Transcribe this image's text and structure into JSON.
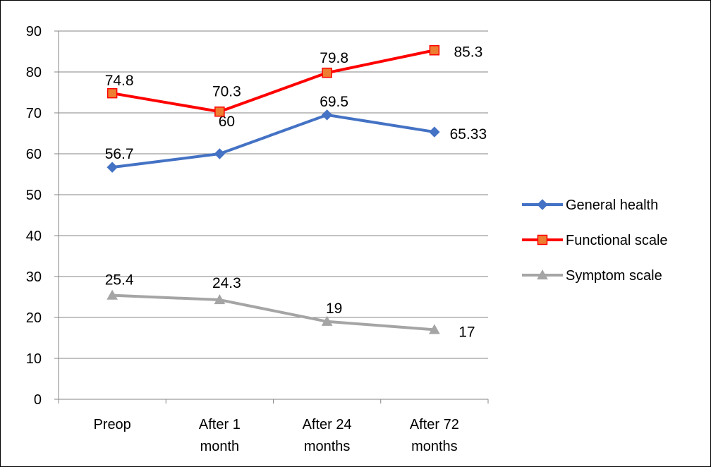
{
  "chart_data": {
    "type": "line",
    "title": "",
    "xlabel": "",
    "ylabel": "",
    "categories": [
      [
        "Preop"
      ],
      [
        "After 1",
        "month"
      ],
      [
        "After 24",
        "months"
      ],
      [
        "After 72",
        "months"
      ]
    ],
    "ylim": [
      0,
      90
    ],
    "yticks": [
      0,
      10,
      20,
      30,
      40,
      50,
      60,
      70,
      80,
      90
    ],
    "grid": true,
    "legend_position": "right",
    "series": [
      {
        "name": "General health",
        "values": [
          56.7,
          60,
          69.5,
          65.33
        ],
        "labels": [
          "56.7",
          "60",
          "69.5",
          "65.33"
        ],
        "color": "#4472C4",
        "marker": "diamond"
      },
      {
        "name": "Functional scale",
        "values": [
          74.8,
          70.3,
          79.8,
          85.3
        ],
        "labels": [
          "74.8",
          "70.3",
          "79.8",
          "85.3"
        ],
        "color": "#FF0000",
        "marker": "square",
        "marker_fill": "#ED7D31"
      },
      {
        "name": "Symptom scale",
        "values": [
          25.4,
          24.3,
          19,
          17
        ],
        "labels": [
          "25.4",
          "24.3",
          "19",
          "17"
        ],
        "color": "#A5A5A5",
        "marker": "triangle"
      }
    ]
  }
}
